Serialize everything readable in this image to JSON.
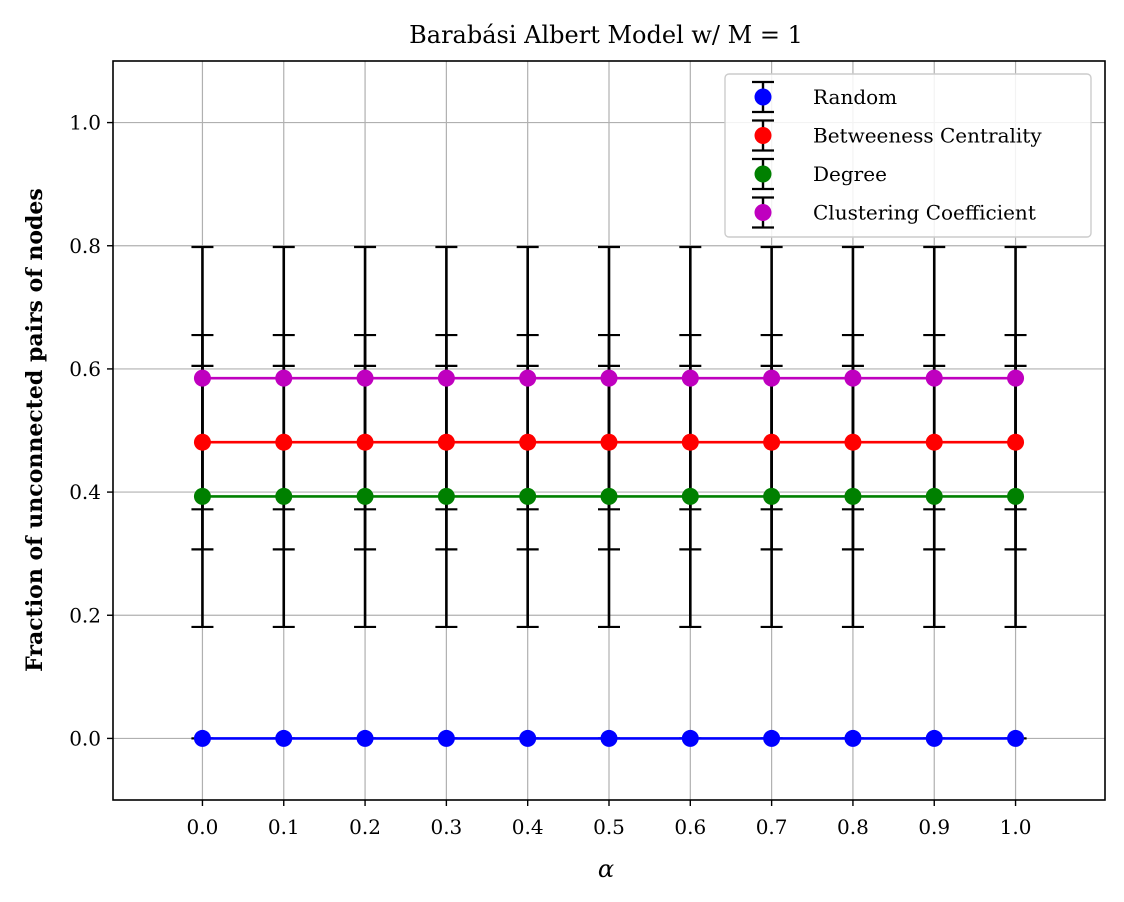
{
  "chart_data": {
    "type": "line",
    "title": "Barabási Albert Model w/ M = 1",
    "xlabel": "α",
    "ylabel": "Fraction of unconnected pairs of nodes",
    "x": [
      0.0,
      0.1,
      0.2,
      0.3,
      0.4,
      0.5,
      0.6,
      0.7,
      0.8,
      0.9,
      1.0
    ],
    "x_tick_labels": [
      "0.0",
      "0.1",
      "0.2",
      "0.3",
      "0.4",
      "0.5",
      "0.6",
      "0.7",
      "0.8",
      "0.9",
      "1.0"
    ],
    "y_ticks": [
      0.0,
      0.2,
      0.4,
      0.6,
      0.8,
      1.0
    ],
    "y_tick_labels": [
      "0.0",
      "0.2",
      "0.4",
      "0.6",
      "0.8",
      "1.0"
    ],
    "xlim": [
      -0.11,
      1.11
    ],
    "ylim": [
      -0.1,
      1.1
    ],
    "grid": true,
    "legend_position": "top-right",
    "error_bar_color": "#000000",
    "series": [
      {
        "name": "Random",
        "color": "#0000ff",
        "values": [
          0.0,
          0.0,
          0.0,
          0.0,
          0.0,
          0.0,
          0.0,
          0.0,
          0.0,
          0.0,
          0.0
        ],
        "error": [
          0.0,
          0.0,
          0.0,
          0.0,
          0.0,
          0.0,
          0.0,
          0.0,
          0.0,
          0.0,
          0.0
        ]
      },
      {
        "name": "Betweeness Centrality",
        "color": "#ff0000",
        "values": [
          0.481,
          0.481,
          0.481,
          0.481,
          0.481,
          0.481,
          0.481,
          0.481,
          0.481,
          0.481,
          0.481
        ],
        "error": [
          0.174,
          0.174,
          0.174,
          0.174,
          0.174,
          0.174,
          0.174,
          0.174,
          0.174,
          0.174,
          0.174
        ]
      },
      {
        "name": "Degree",
        "color": "#008000",
        "values": [
          0.393,
          0.393,
          0.393,
          0.393,
          0.393,
          0.393,
          0.393,
          0.393,
          0.393,
          0.393,
          0.393
        ],
        "error": [
          0.212,
          0.212,
          0.212,
          0.212,
          0.212,
          0.212,
          0.212,
          0.212,
          0.212,
          0.212,
          0.212
        ]
      },
      {
        "name": "Clustering Coefficient",
        "color": "#bf00bf",
        "values": [
          0.585,
          0.585,
          0.585,
          0.585,
          0.585,
          0.585,
          0.585,
          0.585,
          0.585,
          0.585,
          0.585
        ],
        "error": [
          0.213,
          0.213,
          0.213,
          0.213,
          0.213,
          0.213,
          0.213,
          0.213,
          0.213,
          0.213,
          0.213
        ]
      }
    ]
  }
}
